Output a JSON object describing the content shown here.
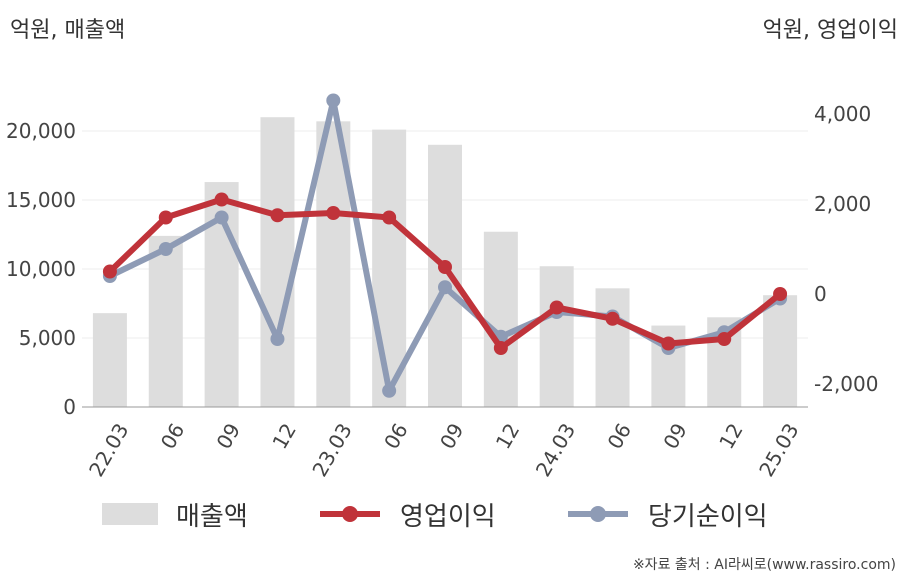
{
  "chart_data": {
    "type": "bar+line",
    "left_axis_label": "억원, 매출액",
    "right_axis_label": "억원, 영업이익",
    "categories": [
      "22.03",
      "06",
      "09",
      "12",
      "23.03",
      "06",
      "09",
      "12",
      "24.03",
      "06",
      "09",
      "12",
      "25.03"
    ],
    "left_ticks": [
      "0",
      "5,000",
      "10,000",
      "15,000",
      "20,000"
    ],
    "right_ticks": [
      "-2,000",
      "0",
      "2,000",
      "4,000"
    ],
    "ylim_left": [
      0,
      22000
    ],
    "ylim_right": [
      -2500,
      4400
    ],
    "grid": true,
    "legend_position": "bottom",
    "series": [
      {
        "name": "매출액",
        "axis": "left",
        "type": "bar",
        "color": "#dddddd",
        "values": [
          6800,
          12400,
          16300,
          21000,
          20700,
          20100,
          19000,
          12700,
          10200,
          8600,
          5900,
          6500,
          8100
        ]
      },
      {
        "name": "영업이익",
        "axis": "right",
        "type": "line",
        "color": "#c0333a",
        "values": [
          500,
          1700,
          2100,
          1750,
          1800,
          1700,
          600,
          -1200,
          -300,
          -550,
          -1100,
          -1000,
          0
        ]
      },
      {
        "name": "당기순이익",
        "axis": "right",
        "type": "line",
        "color": "#8e9bb5",
        "values": [
          400,
          1000,
          1700,
          -1000,
          4300,
          -2150,
          150,
          -950,
          -400,
          -500,
          -1200,
          -850,
          -100
        ]
      }
    ]
  },
  "source": "※자료 출처 : AI라씨로(www.rassiro.com)"
}
